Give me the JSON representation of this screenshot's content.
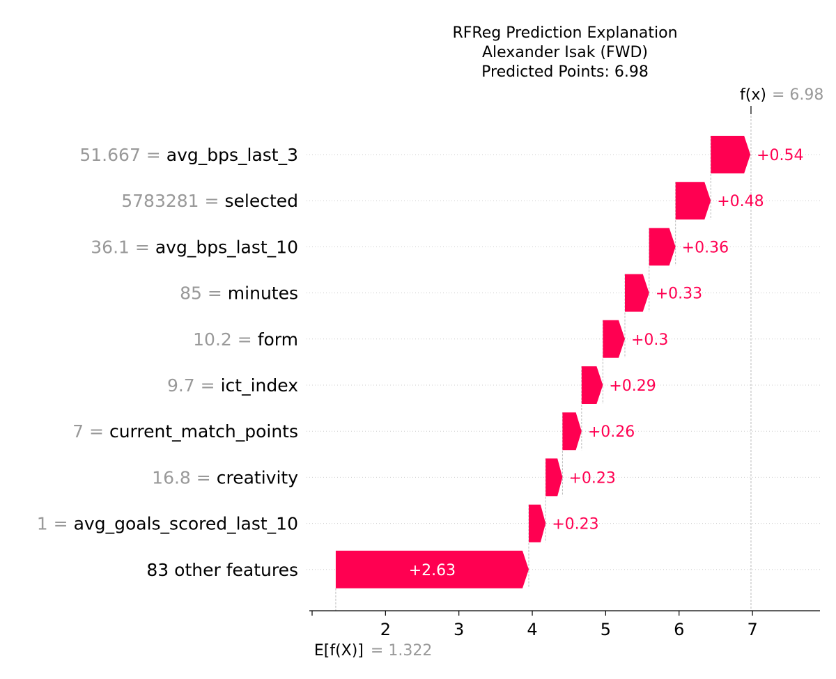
{
  "chart_data": {
    "type": "waterfall",
    "title_lines": [
      "RFReg Prediction Explanation",
      "Alexander Isak (FWD)",
      "Predicted Points: 6.98"
    ],
    "base_value": 1.322,
    "base_label_prefix": "E[f(X)]",
    "base_label_text": "= 1.322",
    "output_value": 6.98,
    "output_label_prefix": "f(x)",
    "output_label_text": "= 6.98",
    "xlim": [
      1.0,
      7.92
    ],
    "xticks": [
      1,
      2,
      3,
      4,
      5,
      6,
      7
    ],
    "xtick_labels": [
      "",
      "2",
      "3",
      "4",
      "5",
      "6",
      "7"
    ],
    "bar_color": "#ff0051",
    "features": [
      {
        "value_text": "51.667 =",
        "name": "avg_bps_last_3",
        "contribution": 0.54,
        "label": "+0.54"
      },
      {
        "value_text": "5783281 =",
        "name": "selected",
        "contribution": 0.48,
        "label": "+0.48"
      },
      {
        "value_text": "36.1 =",
        "name": "avg_bps_last_10",
        "contribution": 0.36,
        "label": "+0.36"
      },
      {
        "value_text": "85 =",
        "name": "minutes",
        "contribution": 0.33,
        "label": "+0.33"
      },
      {
        "value_text": "10.2 =",
        "name": "form",
        "contribution": 0.3,
        "label": "+0.3"
      },
      {
        "value_text": "9.7 =",
        "name": "ict_index",
        "contribution": 0.29,
        "label": "+0.29"
      },
      {
        "value_text": "7 =",
        "name": "current_match_points",
        "contribution": 0.26,
        "label": "+0.26"
      },
      {
        "value_text": "16.8 =",
        "name": "creativity",
        "contribution": 0.23,
        "label": "+0.23"
      },
      {
        "value_text": "1 =",
        "name": "avg_goals_scored_last_10",
        "contribution": 0.23,
        "label": "+0.23"
      },
      {
        "value_text": "",
        "name": "83 other features",
        "contribution": 2.63,
        "label": "+2.63"
      }
    ]
  }
}
